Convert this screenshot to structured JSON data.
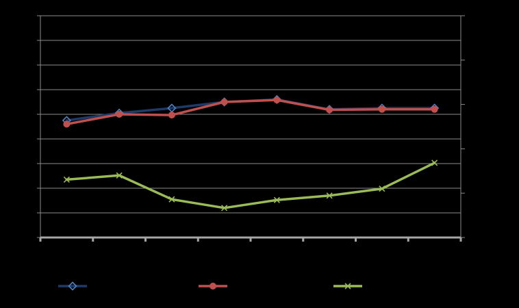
{
  "chart_data": {
    "type": "line",
    "categories": [
      "",
      "",
      "",
      "",
      "",
      "",
      "",
      ""
    ],
    "ylim": [
      0,
      9
    ],
    "y2lim": [
      0,
      5
    ],
    "grid": true,
    "legend_position": "bottom",
    "series": [
      {
        "values": [
          4.75,
          5.05,
          5.25,
          5.5,
          5.6,
          5.2,
          5.25,
          5.25
        ],
        "color": "#1F3A68",
        "marker": "diamond",
        "axis": "left"
      },
      {
        "values": [
          4.6,
          5.0,
          4.97,
          5.5,
          5.58,
          5.18,
          5.2,
          5.2
        ],
        "color": "#C0504D",
        "marker": "circle",
        "axis": "left"
      },
      {
        "values": [
          2.35,
          2.52,
          1.55,
          1.2,
          1.52,
          1.7,
          1.98,
          3.03
        ],
        "color": "#9BBB59",
        "marker": "x",
        "axis": "left"
      }
    ]
  }
}
